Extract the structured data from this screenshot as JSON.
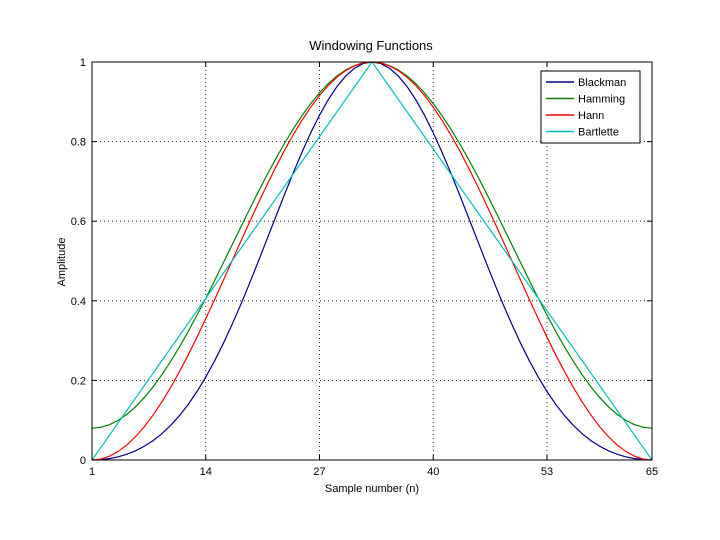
{
  "chart_data": {
    "type": "line",
    "title": "Windowing Functions",
    "xlabel": "Sample number (n)",
    "ylabel": "Amplitude",
    "xlim": [
      1,
      65
    ],
    "ylim": [
      0,
      1
    ],
    "xticks": [
      1,
      14,
      27,
      40,
      53,
      65
    ],
    "yticks": [
      0,
      0.2,
      0.4,
      0.6,
      0.8,
      1
    ],
    "ytick_labels": [
      "0",
      "0.2",
      "0.4",
      "0.6",
      "0.8",
      "1"
    ],
    "grid": true,
    "legend_position": "top-right",
    "N": 64,
    "series": [
      {
        "name": "Blackman",
        "function": "blackman",
        "color": "#00008b"
      },
      {
        "name": "Hamming",
        "function": "hamming",
        "color": "#008000"
      },
      {
        "name": "Hann",
        "function": "hann",
        "color": "#ff0000"
      },
      {
        "name": "Bartlette",
        "function": "bartlett",
        "color": "#00bfbf"
      }
    ]
  }
}
